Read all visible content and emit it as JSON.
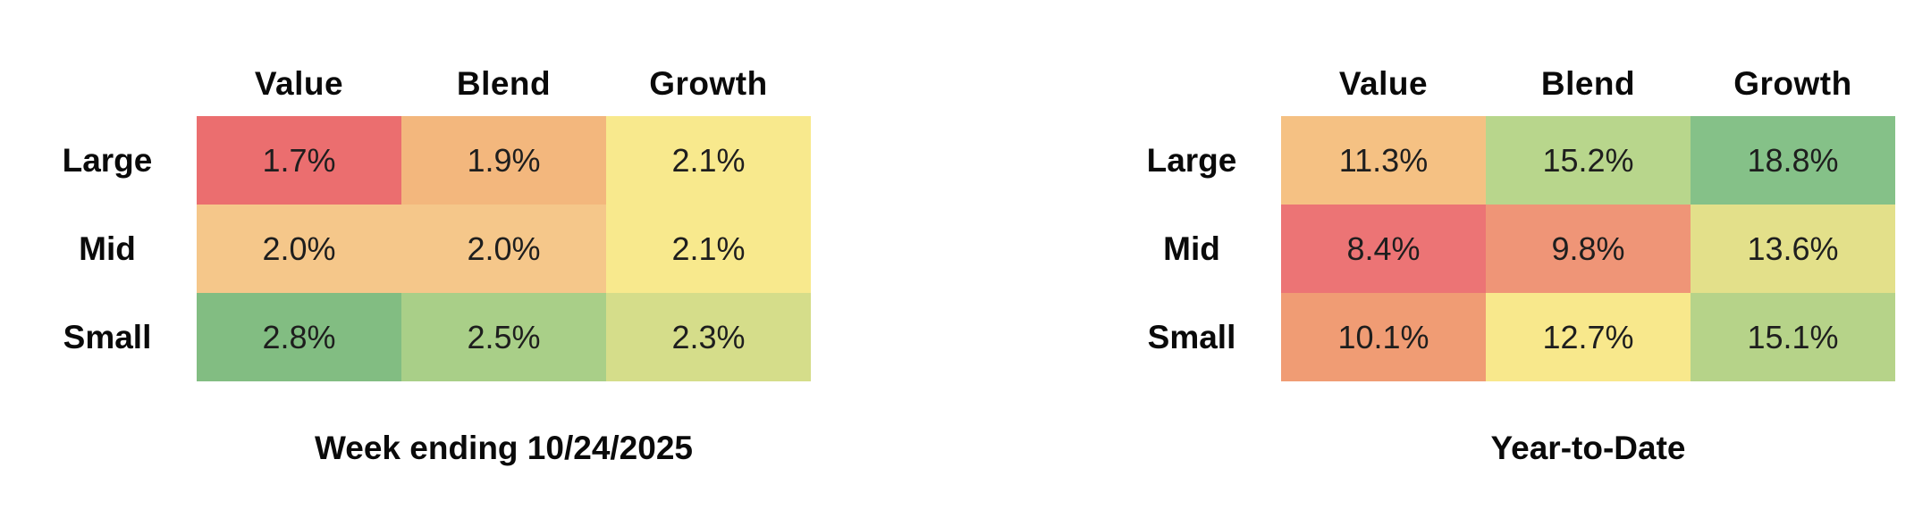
{
  "canvas": {
    "background": "#ffffff",
    "text_color": "#111111"
  },
  "tables": [
    {
      "name": "weekly",
      "caption": "Week ending 10/24/2025",
      "columns": [
        "Value",
        "Blend",
        "Growth"
      ],
      "rows": [
        {
          "label": "Large",
          "cells": [
            {
              "text": "1.7%",
              "bg": "#eb6e6f"
            },
            {
              "text": "1.9%",
              "bg": "#f3b77d"
            },
            {
              "text": "2.1%",
              "bg": "#f8e98d"
            }
          ]
        },
        {
          "label": "Mid",
          "cells": [
            {
              "text": "2.0%",
              "bg": "#f5c78a"
            },
            {
              "text": "2.0%",
              "bg": "#f5c78a"
            },
            {
              "text": "2.1%",
              "bg": "#f8e98d"
            }
          ]
        },
        {
          "label": "Small",
          "cells": [
            {
              "text": "2.8%",
              "bg": "#82bd82"
            },
            {
              "text": "2.5%",
              "bg": "#a9cf88"
            },
            {
              "text": "2.3%",
              "bg": "#d5dd8a"
            }
          ]
        }
      ]
    },
    {
      "name": "ytd",
      "caption": "Year-to-Date",
      "columns": [
        "Value",
        "Blend",
        "Growth"
      ],
      "rows": [
        {
          "label": "Large",
          "cells": [
            {
              "text": "11.3%",
              "bg": "#f5c183"
            },
            {
              "text": "15.2%",
              "bg": "#b8d68c"
            },
            {
              "text": "18.8%",
              "bg": "#85c188"
            }
          ]
        },
        {
          "label": "Mid",
          "cells": [
            {
              "text": "8.4%",
              "bg": "#ec7475"
            },
            {
              "text": "9.8%",
              "bg": "#ef9577"
            },
            {
              "text": "13.6%",
              "bg": "#e3e08a"
            }
          ]
        },
        {
          "label": "Small",
          "cells": [
            {
              "text": "10.1%",
              "bg": "#f09c74"
            },
            {
              "text": "12.7%",
              "bg": "#f8e88c"
            },
            {
              "text": "15.1%",
              "bg": "#b6d389"
            }
          ]
        }
      ]
    }
  ],
  "chart_data": [
    {
      "type": "heatmap",
      "title": "Week ending 10/24/2025",
      "columns": [
        "Value",
        "Blend",
        "Growth"
      ],
      "rows": [
        "Large",
        "Mid",
        "Small"
      ],
      "values": [
        [
          1.7,
          1.9,
          2.1
        ],
        [
          2.0,
          2.0,
          2.1
        ],
        [
          2.8,
          2.5,
          2.3
        ]
      ],
      "unit": "%",
      "colormap": "red-yellow-green, low to high",
      "legend": "none",
      "grid": "off"
    },
    {
      "type": "heatmap",
      "title": "Year-to-Date",
      "columns": [
        "Value",
        "Blend",
        "Growth"
      ],
      "rows": [
        "Large",
        "Mid",
        "Small"
      ],
      "values": [
        [
          11.3,
          15.2,
          18.8
        ],
        [
          8.4,
          9.8,
          13.6
        ],
        [
          10.1,
          12.7,
          15.1
        ]
      ],
      "unit": "%",
      "colormap": "red-yellow-green, low to high",
      "legend": "none",
      "grid": "off"
    }
  ]
}
